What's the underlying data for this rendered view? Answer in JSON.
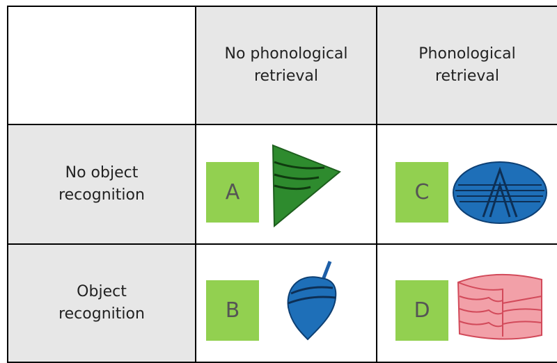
{
  "table": {
    "columns": [
      "No phonological retrieval",
      "Phonological retrieval"
    ],
    "rows": [
      {
        "label": "No object recognition",
        "cells": [
          "A",
          "C"
        ]
      },
      {
        "label": "Object recognition",
        "cells": [
          "B",
          "D"
        ]
      }
    ]
  }
}
